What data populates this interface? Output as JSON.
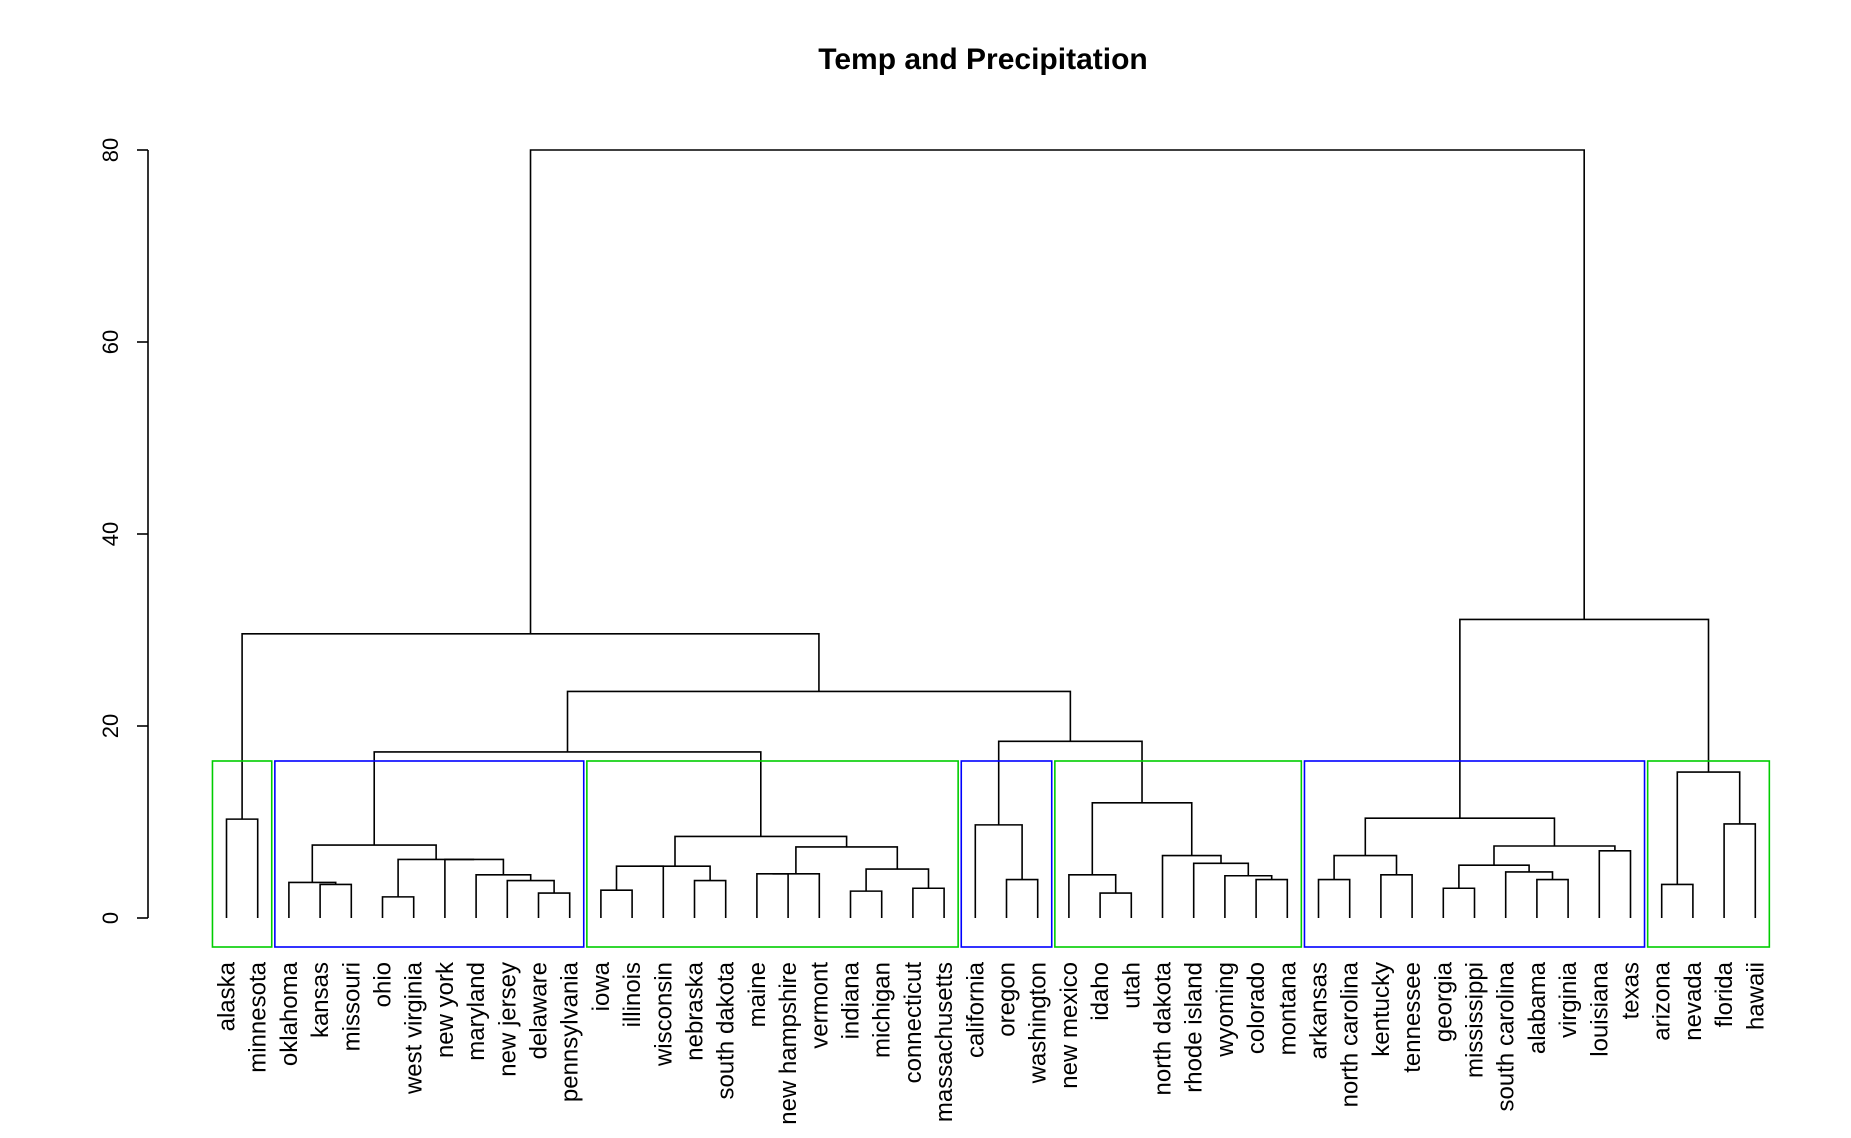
{
  "chart_data": {
    "type": "dendrogram",
    "title": "Temp and Precipitation",
    "xlabel": "",
    "ylabel": "",
    "ylim": [
      0,
      80
    ],
    "yticks": [
      0,
      20,
      40,
      60,
      80
    ],
    "leaves": [
      "alaska",
      "minnesota",
      "oklahoma",
      "kansas",
      "missouri",
      "ohio",
      "west virginia",
      "new york",
      "maryland",
      "new jersey",
      "delaware",
      "pennsylvania",
      "iowa",
      "illinois",
      "wisconsin",
      "nebraska",
      "south dakota",
      "maine",
      "new hampshire",
      "vermont",
      "indiana",
      "michigan",
      "connecticut",
      "massachusetts",
      "california",
      "oregon",
      "washington",
      "new mexico",
      "idaho",
      "utah",
      "north dakota",
      "rhode island",
      "wyoming",
      "colorado",
      "montana",
      "arkansas",
      "north carolina",
      "kentucky",
      "tennessee",
      "georgia",
      "mississippi",
      "south carolina",
      "alabama",
      "virginia",
      "louisiana",
      "texas",
      "arizona",
      "nevada",
      "florida",
      "hawaii"
    ],
    "merges": [
      [
        "alaska",
        "minnesota",
        10.3
      ],
      [
        "delaware",
        "pennsylvania",
        2.6
      ],
      [
        "new jersey",
        "m2",
        3.9
      ],
      [
        "maryland",
        "m3",
        4.5
      ],
      [
        "new york",
        "m4",
        6.1
      ],
      [
        "ohio",
        "west virginia",
        2.2
      ],
      [
        "m6",
        "m5",
        6.1
      ],
      [
        "kansas",
        "missouri",
        3.5
      ],
      [
        "oklahoma",
        "m8",
        3.7
      ],
      [
        "m9",
        "m7",
        7.6
      ],
      [
        "iowa",
        "illinois",
        2.9
      ],
      [
        "m11",
        "wisconsin",
        5.4
      ],
      [
        "nebraska",
        "south dakota",
        3.9
      ],
      [
        "m12",
        "m13",
        5.4
      ],
      [
        "maine",
        "new hampshire",
        4.6
      ],
      [
        "m15",
        "vermont",
        4.6
      ],
      [
        "indiana",
        "michigan",
        2.8
      ],
      [
        "connecticut",
        "massachusetts",
        3.1
      ],
      [
        "m17",
        "m18",
        5.1
      ],
      [
        "m16",
        "m19",
        7.4
      ],
      [
        "m14",
        "m20",
        8.5
      ],
      [
        "m10",
        "m21",
        17.3
      ],
      [
        "oregon",
        "washington",
        4.0
      ],
      [
        "california",
        "m23",
        9.7
      ],
      [
        "idaho",
        "utah",
        2.6
      ],
      [
        "new mexico",
        "m25",
        4.5
      ],
      [
        "colorado",
        "montana",
        4.0
      ],
      [
        "wyoming",
        "m27",
        4.4
      ],
      [
        "rhode island",
        "m28",
        5.7
      ],
      [
        "north dakota",
        "m29",
        6.5
      ],
      [
        "m26",
        "m30",
        12.0
      ],
      [
        "m24",
        "m31",
        18.4
      ],
      [
        "m22",
        "m32",
        23.6
      ],
      [
        "m1",
        "m33",
        29.6
      ],
      [
        "arkansas",
        "north carolina",
        4.0
      ],
      [
        "kentucky",
        "tennessee",
        4.5
      ],
      [
        "m35",
        "m36",
        6.5
      ],
      [
        "georgia",
        "mississippi",
        3.1
      ],
      [
        "alabama",
        "virginia",
        4.0
      ],
      [
        "south carolina",
        "m39",
        4.8
      ],
      [
        "m38",
        "m40",
        5.5
      ],
      [
        "louisiana",
        "texas",
        7.0
      ],
      [
        "m41",
        "m42",
        7.5
      ],
      [
        "m37",
        "m43",
        10.4
      ],
      [
        "arizona",
        "nevada",
        3.5
      ],
      [
        "florida",
        "hawaii",
        9.8
      ],
      [
        "m45",
        "m46",
        15.2
      ],
      [
        "m44",
        "m47",
        31.1
      ],
      [
        "m34",
        "m48",
        80.0
      ]
    ],
    "clusters": [
      {
        "from": 0,
        "to": 1,
        "color": "#00cd00"
      },
      {
        "from": 2,
        "to": 11,
        "color": "#0000ff"
      },
      {
        "from": 12,
        "to": 23,
        "color": "#00cd00"
      },
      {
        "from": 24,
        "to": 26,
        "color": "#0000ff"
      },
      {
        "from": 27,
        "to": 34,
        "color": "#00cd00"
      },
      {
        "from": 35,
        "to": 45,
        "color": "#0000ff"
      },
      {
        "from": 46,
        "to": 49,
        "color": "#00cd00"
      }
    ]
  }
}
